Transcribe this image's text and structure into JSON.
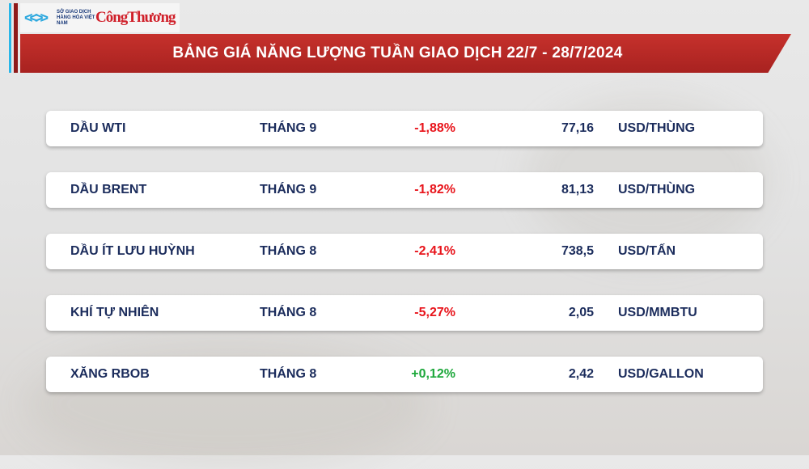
{
  "logo": {
    "exchange_text": "SỞ GIAO DỊCH HÀNG HÓA VIỆT NAM",
    "brand_text": "CôngThương"
  },
  "title": "BẢNG GIÁ NĂNG LƯỢNG TUẦN GIAO DỊCH 22/7 - 28/7/2024",
  "colors": {
    "negative": "#e8141b",
    "positive": "#1ea83c",
    "text": "#1b2c5c",
    "banner": "#b52a26"
  },
  "rows": [
    {
      "name": "DẦU WTI",
      "month": "THÁNG 9",
      "change": "-1,88%",
      "price": "77,16",
      "unit": "USD/THÙNG",
      "direction": "down"
    },
    {
      "name": "DẦU BRENT",
      "month": "THÁNG 9",
      "change": "-1,82%",
      "price": "81,13",
      "unit": "USD/THÙNG",
      "direction": "down"
    },
    {
      "name": "DẦU ÍT LƯU HUỲNH",
      "month": "THÁNG 8",
      "change": "-2,41%",
      "price": "738,5",
      "unit": "USD/TẤN",
      "direction": "down"
    },
    {
      "name": "KHÍ TỰ NHIÊN",
      "month": "THÁNG 8",
      "change": "-5,27%",
      "price": "2,05",
      "unit": "USD/MMBTU",
      "direction": "down"
    },
    {
      "name": "XĂNG RBOB",
      "month": "THÁNG 8",
      "change": "+0,12%",
      "price": "2,42",
      "unit": "USD/GALLON",
      "direction": "up"
    }
  ]
}
